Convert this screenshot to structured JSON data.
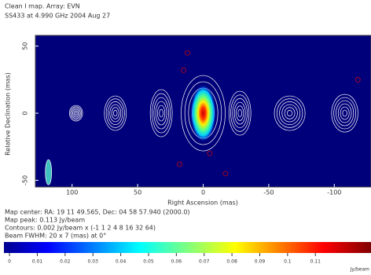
{
  "chart_data": {
    "type": "contour-map",
    "title": "Clean I map.  Array: EVN",
    "subtitle": "SS433 at 4.990 GHz 2004 Aug 27",
    "x_label": "Right Ascension (mas)",
    "y_label": "Relative Declination (mas)",
    "xlim": [
      128,
      -128
    ],
    "xticks": [
      100,
      50,
      0,
      -50,
      -100
    ],
    "ylim": [
      -55,
      58
    ],
    "yticks": [
      50,
      0,
      -50
    ],
    "background": "#00007a",
    "annotations": [
      "Map center: RA: 19 11 49.565, Dec: 04 58 57.940 (2000.0)",
      "Map peak: 0.113 Jy/beam",
      "Contours: 0.002 Jy/beam x (-1 1 2 4 8 16 32 64)",
      "Beam FWHM: 20 x 7 (mas) at 0°"
    ],
    "colorbar": {
      "lim": [
        -0.002,
        0.13
      ],
      "ticks": [
        0,
        0.01,
        0.02,
        0.03,
        0.04,
        0.05,
        0.06,
        0.07,
        0.08,
        0.09,
        0.1,
        0.11
      ],
      "unit": "Jy/beam"
    }
  }
}
